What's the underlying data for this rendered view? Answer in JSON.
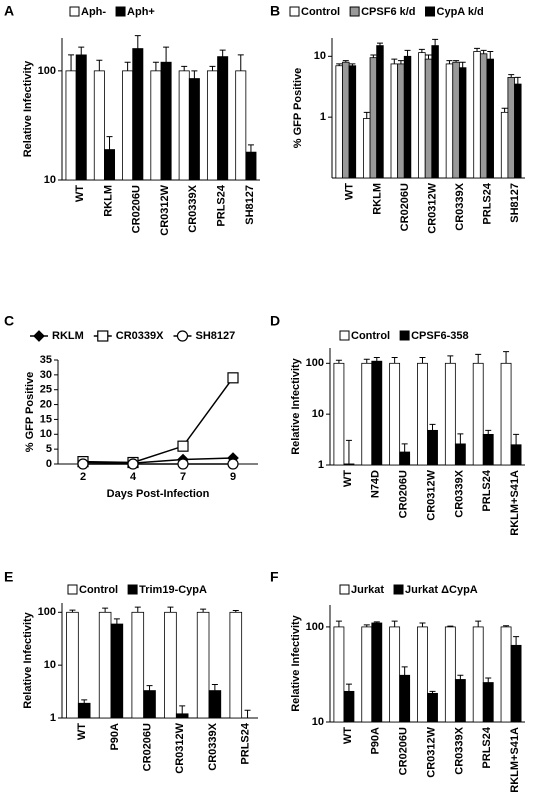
{
  "chart_data": [
    {
      "type": "bar",
      "panel_label": "A",
      "ylabel": "Relative Infectivity",
      "log_scale": true,
      "ylim": [
        10,
        200
      ],
      "yticks": [
        10,
        100
      ],
      "categories": [
        "WT",
        "RKLM",
        "CR0206U",
        "CR0312W",
        "CR0339X",
        "PRLS24",
        "SH8127"
      ],
      "series": [
        {
          "name": "Aph-",
          "color": "#ffffff",
          "values": [
            100,
            100,
            100,
            100,
            100,
            100,
            100
          ],
          "errors": [
            40,
            25,
            20,
            20,
            10,
            10,
            40
          ]
        },
        {
          "name": "Aph+",
          "color": "#000000",
          "values": [
            140,
            19,
            160,
            120,
            85,
            135,
            18
          ],
          "errors": [
            25,
            6,
            50,
            45,
            15,
            20,
            3
          ]
        }
      ]
    },
    {
      "type": "bar",
      "panel_label": "B",
      "ylabel": "% GFP Positive",
      "log_scale": true,
      "ylim": [
        0.1,
        20
      ],
      "yticks": [
        1,
        10
      ],
      "categories": [
        "WT",
        "RKLM",
        "CR0206U",
        "CR0312W",
        "CR0339X",
        "PRLS24",
        "SH8127"
      ],
      "series": [
        {
          "name": "Control",
          "color": "#ffffff",
          "values": [
            7,
            0.95,
            7.5,
            11.5,
            7.5,
            12,
            1.2
          ],
          "errors": [
            0.5,
            0.25,
            1.5,
            1.5,
            1,
            1.5,
            0.2
          ]
        },
        {
          "name": "CPSF6 k/d",
          "color": "#999999",
          "values": [
            8,
            9.5,
            7.5,
            9,
            8,
            11,
            4.5
          ],
          "errors": [
            0.5,
            1,
            1,
            1.5,
            0.5,
            1.5,
            0.5
          ]
        },
        {
          "name": "CypA k/d",
          "color": "#000000",
          "values": [
            7,
            15,
            10,
            15,
            6.5,
            9,
            3.5
          ],
          "errors": [
            0.5,
            1.5,
            2.5,
            4,
            1.5,
            3,
            1
          ]
        }
      ]
    },
    {
      "type": "line",
      "panel_label": "C",
      "ylabel": "% GFP Positive",
      "xlabel": "Days Post-Infection",
      "ylim": [
        0,
        35
      ],
      "yticks": [
        0,
        5,
        10,
        15,
        20,
        25,
        30,
        35
      ],
      "categories": [
        "2",
        "4",
        "7",
        "9"
      ],
      "series": [
        {
          "name": "RKLM",
          "color": "#000000",
          "marker": "diamond",
          "values": [
            0.5,
            0.3,
            1.5,
            2
          ]
        },
        {
          "name": "CR0339X",
          "color": "#ffffff",
          "marker": "square",
          "values": [
            0.8,
            0.5,
            6,
            29
          ]
        },
        {
          "name": "SH8127",
          "color": "#ffffff",
          "marker": "circle",
          "values": [
            0,
            0,
            0,
            0
          ]
        }
      ]
    },
    {
      "type": "bar",
      "panel_label": "D",
      "ylabel": "Relative Infectivity",
      "log_scale": true,
      "ylim": [
        1,
        200
      ],
      "yticks": [
        1,
        10,
        100
      ],
      "categories": [
        "WT",
        "N74D",
        "CR0206U",
        "CR0312W",
        "CR0339X",
        "PRLS24",
        "RKLM+S41A"
      ],
      "series": [
        {
          "name": "Control",
          "color": "#ffffff",
          "values": [
            100,
            100,
            100,
            100,
            100,
            100,
            100
          ],
          "errors": [
            15,
            20,
            30,
            30,
            40,
            50,
            70
          ]
        },
        {
          "name": "CPSF6-358",
          "color": "#000000",
          "values": [
            1.05,
            110,
            1.8,
            4.8,
            2.6,
            4,
            2.5
          ],
          "errors": [
            2,
            20,
            0.8,
            1.5,
            1.5,
            0.8,
            1.5
          ]
        }
      ]
    },
    {
      "type": "bar",
      "panel_label": "E",
      "ylabel": "Relative Infectivity",
      "log_scale": true,
      "ylim": [
        1,
        150
      ],
      "yticks": [
        1,
        10,
        100
      ],
      "categories": [
        "WT",
        "P90A",
        "CR0206U",
        "CR0312W",
        "CR0339X",
        "PRLS24"
      ],
      "series": [
        {
          "name": "Control",
          "color": "#ffffff",
          "values": [
            100,
            100,
            100,
            100,
            100,
            100
          ],
          "errors": [
            10,
            20,
            25,
            25,
            15,
            8
          ]
        },
        {
          "name": "Trim19-CypA",
          "color": "#000000",
          "values": [
            1.9,
            60,
            3.3,
            1.2,
            3.3,
            1
          ],
          "errors": [
            0.3,
            15,
            0.8,
            0.5,
            1,
            0.4
          ]
        }
      ]
    },
    {
      "type": "bar",
      "panel_label": "F",
      "ylabel": "Relative Infectivity",
      "log_scale": true,
      "ylim": [
        10,
        170
      ],
      "yticks": [
        10,
        100
      ],
      "categories": [
        "WT",
        "P90A",
        "CR0206U",
        "CR0312W",
        "CR0339X",
        "PRLS24",
        "RKLM+S41A"
      ],
      "series": [
        {
          "name": "Jurkat",
          "color": "#ffffff",
          "values": [
            100,
            100,
            100,
            100,
            100,
            100,
            100
          ],
          "errors": [
            15,
            5,
            15,
            10,
            2,
            15,
            3
          ]
        },
        {
          "name": "Jurkat ΔCypA",
          "color": "#000000",
          "values": [
            21,
            110,
            31,
            20,
            28,
            26,
            64
          ],
          "errors": [
            4,
            3,
            7,
            1,
            3,
            3,
            15
          ]
        }
      ]
    }
  ]
}
